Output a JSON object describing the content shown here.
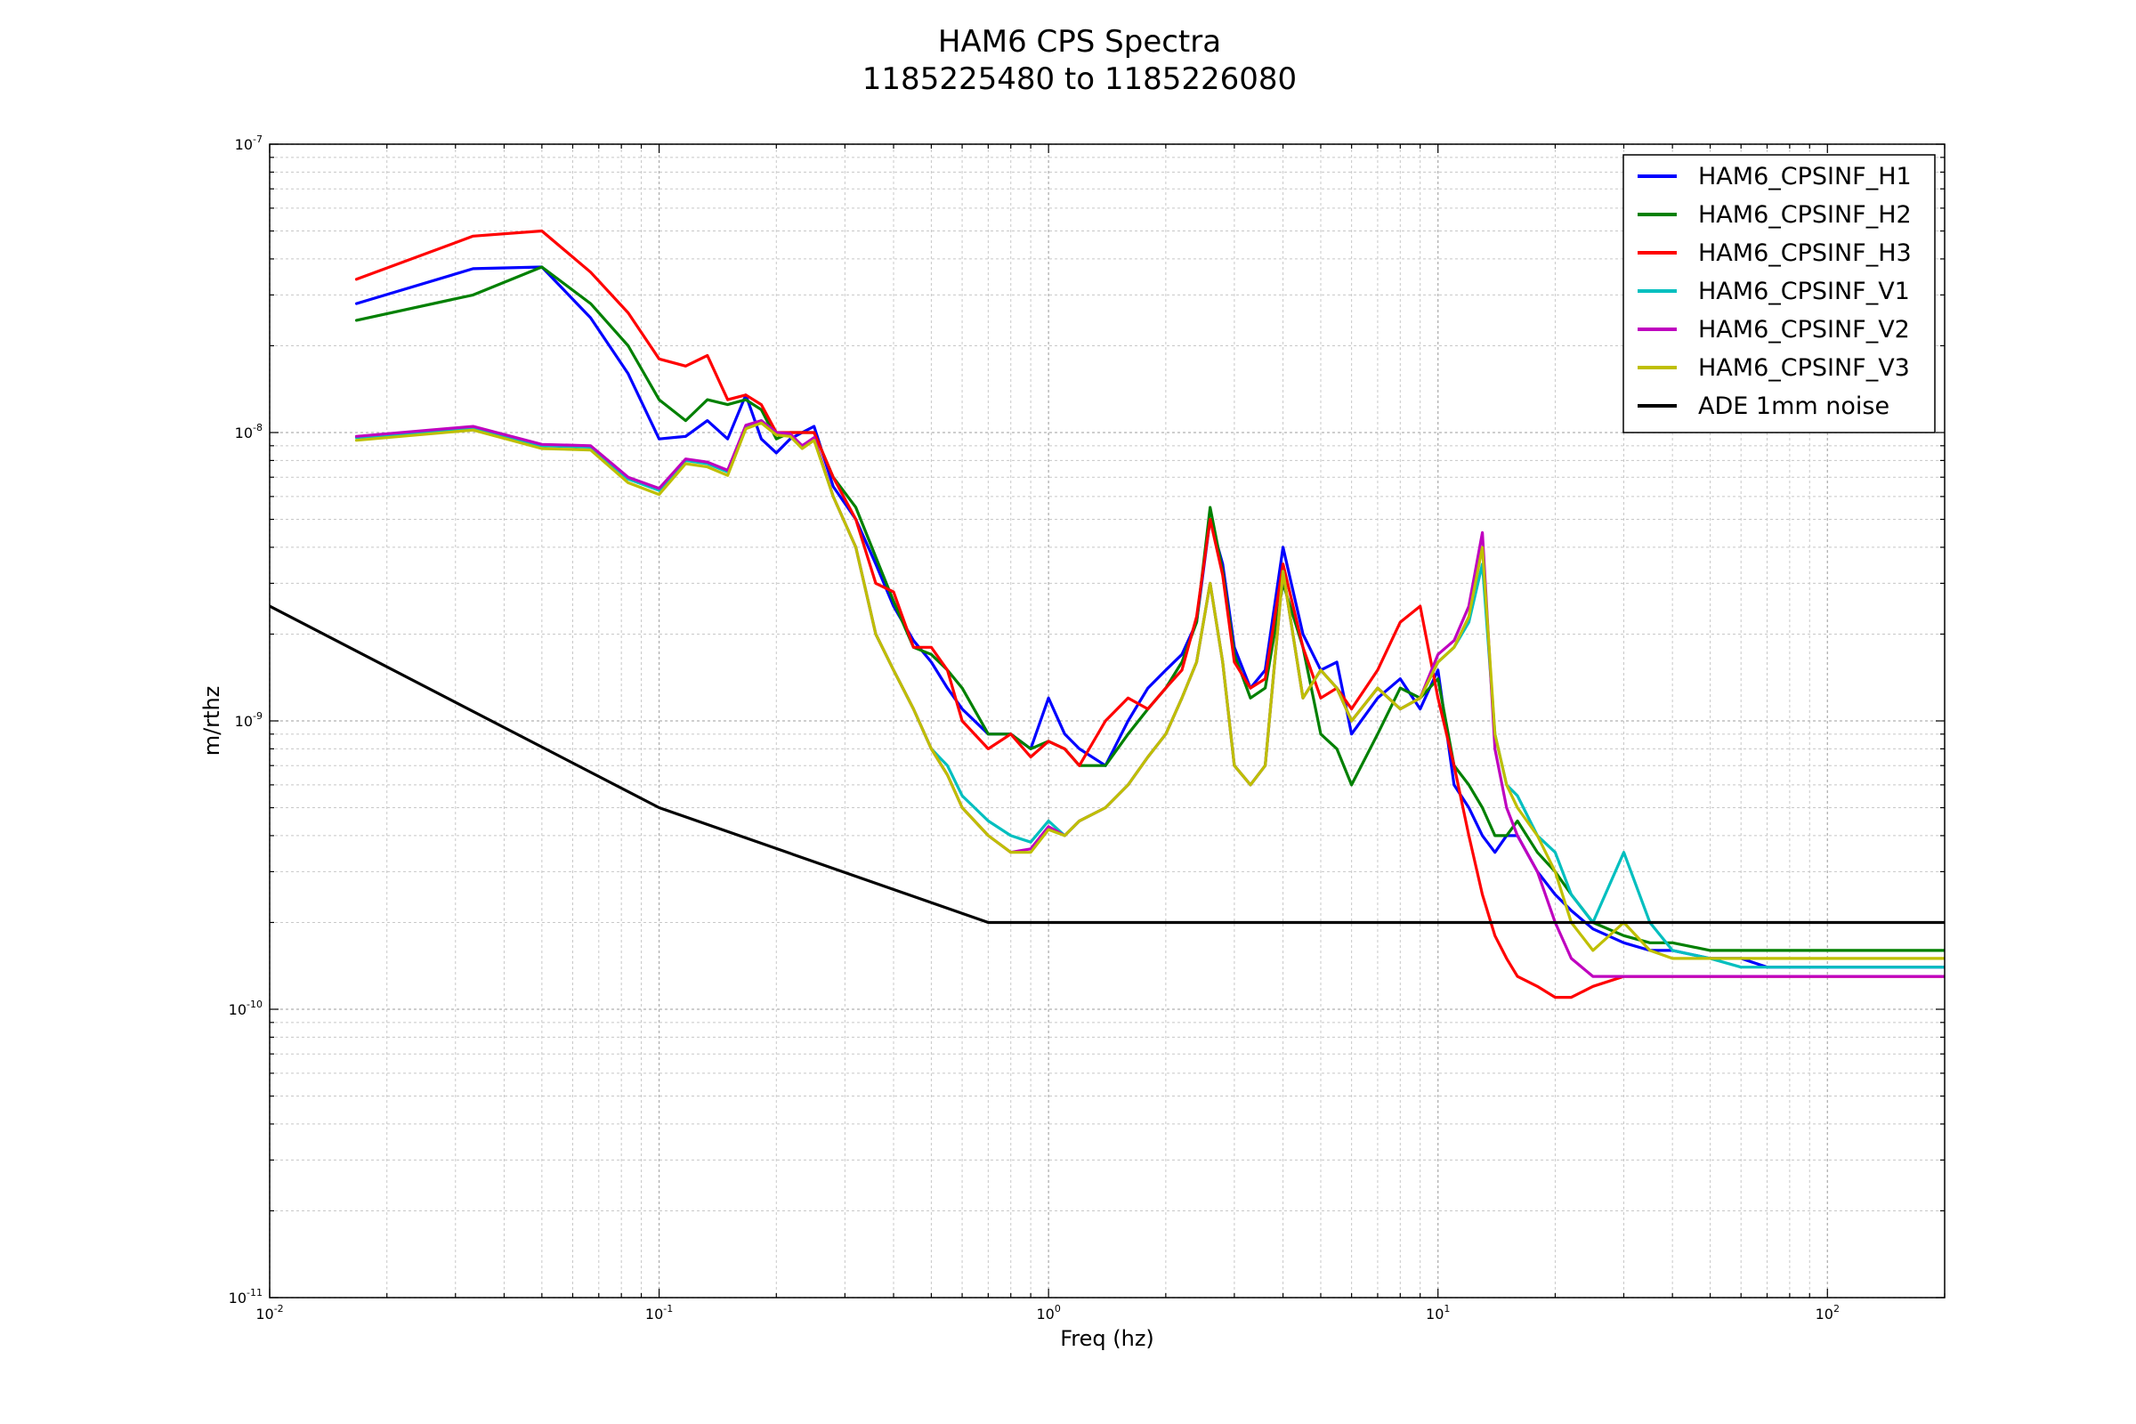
{
  "chart_data": {
    "type": "line",
    "title": "HAM6 CPS Spectra",
    "subtitle": "1185225480 to 1185226080",
    "xlabel": "Freq (hz)",
    "ylabel": "m/rthz",
    "x_scale": "log",
    "y_scale": "log",
    "xlim": [
      0.01,
      200
    ],
    "ylim": [
      1e-11,
      1e-07
    ],
    "grid": true,
    "legend_position": "top-right",
    "x_ticks": [
      {
        "base": "10",
        "exp": "-2",
        "value": 0.01
      },
      {
        "base": "10",
        "exp": "-1",
        "value": 0.1
      },
      {
        "base": "10",
        "exp": "0",
        "value": 1
      },
      {
        "base": "10",
        "exp": "1",
        "value": 10
      },
      {
        "base": "10",
        "exp": "2",
        "value": 100
      }
    ],
    "y_ticks": [
      {
        "base": "10",
        "exp": "-11",
        "value": 1e-11
      },
      {
        "base": "10",
        "exp": "-10",
        "value": 1e-10
      },
      {
        "base": "10",
        "exp": "-9",
        "value": 1e-09
      },
      {
        "base": "10",
        "exp": "-8",
        "value": 1e-08
      },
      {
        "base": "10",
        "exp": "-7",
        "value": 1e-07
      }
    ],
    "series": [
      {
        "name": "HAM6_CPSINF_H1",
        "color": "#0000ff",
        "x": [
          0.0167,
          0.0333,
          0.05,
          0.0667,
          0.0833,
          0.1,
          0.117,
          0.133,
          0.15,
          0.167,
          0.183,
          0.2,
          0.217,
          0.233,
          0.25,
          0.28,
          0.32,
          0.36,
          0.4,
          0.45,
          0.5,
          0.55,
          0.6,
          0.7,
          0.8,
          0.9,
          1.0,
          1.1,
          1.2,
          1.4,
          1.6,
          1.8,
          2.0,
          2.2,
          2.4,
          2.6,
          2.8,
          3.0,
          3.3,
          3.6,
          4.0,
          4.5,
          5.0,
          5.5,
          6.0,
          7.0,
          8.0,
          9.0,
          10.0,
          11.0,
          12.0,
          13.0,
          14.0,
          15.0,
          16.0,
          18.0,
          20.0,
          22.0,
          25.0,
          30.0,
          35.0,
          40.0,
          50.0,
          60.0,
          70.0,
          80.0,
          100.0,
          120.0,
          150.0,
          200.0
        ],
        "y": [
          2.8e-08,
          3.7e-08,
          3.75e-08,
          2.5e-08,
          1.6e-08,
          9.5e-09,
          9.7e-09,
          1.1e-08,
          9.5e-09,
          1.35e-08,
          9.5e-09,
          8.5e-09,
          9.5e-09,
          1e-08,
          1.05e-08,
          6.5e-09,
          5e-09,
          3.5e-09,
          2.5e-09,
          1.9e-09,
          1.6e-09,
          1.3e-09,
          1.1e-09,
          9e-10,
          9e-10,
          8e-10,
          1.2e-09,
          9e-10,
          8e-10,
          7e-10,
          1e-09,
          1.3e-09,
          1.5e-09,
          1.7e-09,
          2.2e-09,
          5e-09,
          3.5e-09,
          1.8e-09,
          1.3e-09,
          1.5e-09,
          4e-09,
          2e-09,
          1.5e-09,
          1.6e-09,
          9e-10,
          1.2e-09,
          1.4e-09,
          1.1e-09,
          1.5e-09,
          6e-10,
          5e-10,
          4e-10,
          3.5e-10,
          4e-10,
          4e-10,
          3e-10,
          2.5e-10,
          2.2e-10,
          1.9e-10,
          1.7e-10,
          1.6e-10,
          1.6e-10,
          1.5e-10,
          1.5e-10,
          1.4e-10,
          1.4e-10,
          1.4e-10,
          1.4e-10,
          1.4e-10,
          1.4e-10
        ]
      },
      {
        "name": "HAM6_CPSINF_H2",
        "color": "#008000",
        "x": [
          0.0167,
          0.0333,
          0.05,
          0.0667,
          0.0833,
          0.1,
          0.117,
          0.133,
          0.15,
          0.167,
          0.183,
          0.2,
          0.217,
          0.233,
          0.25,
          0.28,
          0.32,
          0.36,
          0.4,
          0.45,
          0.5,
          0.55,
          0.6,
          0.7,
          0.8,
          0.9,
          1.0,
          1.1,
          1.2,
          1.4,
          1.6,
          1.8,
          2.0,
          2.2,
          2.4,
          2.6,
          2.8,
          3.0,
          3.3,
          3.6,
          4.0,
          4.5,
          5.0,
          5.5,
          6.0,
          7.0,
          8.0,
          9.0,
          10.0,
          11.0,
          12.0,
          13.0,
          14.0,
          15.0,
          16.0,
          18.0,
          20.0,
          22.0,
          25.0,
          30.0,
          35.0,
          40.0,
          50.0,
          60.0,
          70.0,
          80.0,
          100.0,
          120.0,
          150.0,
          200.0
        ],
        "y": [
          2.45e-08,
          3e-08,
          3.75e-08,
          2.8e-08,
          2e-08,
          1.3e-08,
          1.1e-08,
          1.3e-08,
          1.25e-08,
          1.3e-08,
          1.2e-08,
          9.5e-09,
          1e-08,
          1e-08,
          1e-08,
          7e-09,
          5.5e-09,
          3.7e-09,
          2.6e-09,
          1.8e-09,
          1.7e-09,
          1.5e-09,
          1.3e-09,
          9e-10,
          9e-10,
          8e-10,
          8.5e-10,
          8e-10,
          7e-10,
          7e-10,
          9e-10,
          1.1e-09,
          1.3e-09,
          1.6e-09,
          2.2e-09,
          5.5e-09,
          3.3e-09,
          1.7e-09,
          1.2e-09,
          1.3e-09,
          3e-09,
          1.8e-09,
          9e-10,
          8e-10,
          6e-10,
          9e-10,
          1.3e-09,
          1.2e-09,
          1.4e-09,
          7e-10,
          6e-10,
          5e-10,
          4e-10,
          4e-10,
          4.5e-10,
          3.5e-10,
          3e-10,
          2.5e-10,
          2e-10,
          1.8e-10,
          1.7e-10,
          1.7e-10,
          1.6e-10,
          1.6e-10,
          1.6e-10,
          1.6e-10,
          1.6e-10,
          1.6e-10,
          1.6e-10,
          1.6e-10
        ]
      },
      {
        "name": "HAM6_CPSINF_H3",
        "color": "#ff0000",
        "x": [
          0.0167,
          0.0333,
          0.05,
          0.0667,
          0.0833,
          0.1,
          0.117,
          0.133,
          0.15,
          0.167,
          0.183,
          0.2,
          0.217,
          0.233,
          0.25,
          0.28,
          0.32,
          0.36,
          0.4,
          0.45,
          0.5,
          0.55,
          0.6,
          0.7,
          0.8,
          0.9,
          1.0,
          1.1,
          1.2,
          1.4,
          1.6,
          1.8,
          2.0,
          2.2,
          2.4,
          2.6,
          2.8,
          3.0,
          3.3,
          3.6,
          4.0,
          4.5,
          5.0,
          5.5,
          6.0,
          7.0,
          8.0,
          9.0,
          10.0,
          11.0,
          12.0,
          13.0,
          14.0,
          15.0,
          16.0,
          18.0,
          20.0,
          22.0,
          25.0,
          30.0,
          35.0,
          40.0,
          50.0,
          60.0,
          70.0,
          80.0,
          100.0,
          120.0,
          150.0,
          200.0
        ],
        "y": [
          3.4e-08,
          4.8e-08,
          5e-08,
          3.6e-08,
          2.6e-08,
          1.8e-08,
          1.7e-08,
          1.85e-08,
          1.3e-08,
          1.35e-08,
          1.25e-08,
          1e-08,
          1e-08,
          1e-08,
          1e-08,
          7e-09,
          5e-09,
          3e-09,
          2.8e-09,
          1.8e-09,
          1.8e-09,
          1.5e-09,
          1e-09,
          8e-10,
          9e-10,
          7.5e-10,
          8.5e-10,
          8e-10,
          7e-10,
          1e-09,
          1.2e-09,
          1.1e-09,
          1.3e-09,
          1.5e-09,
          2.3e-09,
          5e-09,
          3.2e-09,
          1.6e-09,
          1.3e-09,
          1.4e-09,
          3.5e-09,
          1.8e-09,
          1.2e-09,
          1.3e-09,
          1.1e-09,
          1.5e-09,
          2.2e-09,
          2.5e-09,
          1.2e-09,
          7e-10,
          4e-10,
          2.5e-10,
          1.8e-10,
          1.5e-10,
          1.3e-10,
          1.2e-10,
          1.1e-10,
          1.1e-10,
          1.2e-10,
          1.3e-10,
          1.3e-10,
          1.3e-10,
          1.3e-10,
          1.3e-10,
          1.3e-10,
          1.3e-10,
          1.3e-10,
          1.3e-10,
          1.3e-10,
          1.3e-10
        ]
      },
      {
        "name": "HAM6_CPSINF_V1",
        "color": "#00bfbf",
        "x": [
          0.0167,
          0.0333,
          0.05,
          0.0667,
          0.0833,
          0.1,
          0.117,
          0.133,
          0.15,
          0.167,
          0.183,
          0.2,
          0.217,
          0.233,
          0.25,
          0.28,
          0.32,
          0.36,
          0.4,
          0.45,
          0.5,
          0.55,
          0.6,
          0.7,
          0.8,
          0.9,
          1.0,
          1.1,
          1.2,
          1.4,
          1.6,
          1.8,
          2.0,
          2.2,
          2.4,
          2.6,
          2.8,
          3.0,
          3.3,
          3.6,
          4.0,
          4.5,
          5.0,
          5.5,
          6.0,
          7.0,
          8.0,
          9.0,
          10.0,
          11.0,
          12.0,
          13.0,
          14.0,
          15.0,
          16.0,
          18.0,
          20.0,
          22.0,
          25.0,
          30.0,
          35.0,
          40.0,
          50.0,
          60.0,
          70.0,
          80.0,
          100.0,
          120.0,
          150.0,
          200.0
        ],
        "y": [
          9.6e-09,
          1.03e-08,
          9e-09,
          8.9e-09,
          6.9e-09,
          6.3e-09,
          8e-09,
          7.8e-09,
          7.3e-09,
          1.05e-08,
          1.1e-08,
          1e-08,
          9.8e-09,
          9e-09,
          9.5e-09,
          6e-09,
          4e-09,
          2e-09,
          1.5e-09,
          1.1e-09,
          8e-10,
          7e-10,
          5.5e-10,
          4.5e-10,
          4e-10,
          3.8e-10,
          4.5e-10,
          4e-10,
          4.5e-10,
          5e-10,
          6e-10,
          7.5e-10,
          9e-10,
          1.2e-09,
          1.6e-09,
          3e-09,
          1.6e-09,
          7e-10,
          6e-10,
          7e-10,
          3.3e-09,
          1.2e-09,
          1.5e-09,
          1.3e-09,
          1e-09,
          1.3e-09,
          1.1e-09,
          1.2e-09,
          1.6e-09,
          1.8e-09,
          2.2e-09,
          3.5e-09,
          9e-10,
          6e-10,
          5.5e-10,
          4e-10,
          3.5e-10,
          2.5e-10,
          2e-10,
          3.5e-10,
          2e-10,
          1.6e-10,
          1.5e-10,
          1.4e-10,
          1.4e-10,
          1.4e-10,
          1.4e-10,
          1.4e-10,
          1.4e-10,
          1.4e-10
        ]
      },
      {
        "name": "HAM6_CPSINF_V2",
        "color": "#bf00bf",
        "x": [
          0.0167,
          0.0333,
          0.05,
          0.0667,
          0.0833,
          0.1,
          0.117,
          0.133,
          0.15,
          0.167,
          0.183,
          0.2,
          0.217,
          0.233,
          0.25,
          0.28,
          0.32,
          0.36,
          0.4,
          0.45,
          0.5,
          0.55,
          0.6,
          0.7,
          0.8,
          0.9,
          1.0,
          1.1,
          1.2,
          1.4,
          1.6,
          1.8,
          2.0,
          2.2,
          2.4,
          2.6,
          2.8,
          3.0,
          3.3,
          3.6,
          4.0,
          4.5,
          5.0,
          5.5,
          6.0,
          7.0,
          8.0,
          9.0,
          10.0,
          11.0,
          12.0,
          13.0,
          14.0,
          15.0,
          16.0,
          18.0,
          20.0,
          22.0,
          25.0,
          30.0,
          35.0,
          40.0,
          50.0,
          60.0,
          70.0,
          80.0,
          100.0,
          120.0,
          150.0,
          200.0
        ],
        "y": [
          9.7e-09,
          1.05e-08,
          9.1e-09,
          9e-09,
          7e-09,
          6.4e-09,
          8.1e-09,
          7.9e-09,
          7.4e-09,
          1.06e-08,
          1.1e-08,
          1e-08,
          9.9e-09,
          9e-09,
          9.6e-09,
          6e-09,
          4e-09,
          2e-09,
          1.5e-09,
          1.1e-09,
          8e-10,
          6.5e-10,
          5e-10,
          4e-10,
          3.5e-10,
          3.6e-10,
          4.3e-10,
          4e-10,
          4.5e-10,
          5e-10,
          6e-10,
          7.5e-10,
          9e-10,
          1.2e-09,
          1.6e-09,
          3e-09,
          1.6e-09,
          7e-10,
          6e-10,
          7e-10,
          3.3e-09,
          1.2e-09,
          1.5e-09,
          1.3e-09,
          1e-09,
          1.3e-09,
          1.1e-09,
          1.2e-09,
          1.7e-09,
          1.9e-09,
          2.5e-09,
          4.5e-09,
          8e-10,
          5e-10,
          4e-10,
          3e-10,
          2e-10,
          1.5e-10,
          1.3e-10,
          1.3e-10,
          1.3e-10,
          1.3e-10,
          1.3e-10,
          1.3e-10,
          1.3e-10,
          1.3e-10,
          1.3e-10,
          1.3e-10,
          1.3e-10,
          1.3e-10
        ]
      },
      {
        "name": "HAM6_CPSINF_V3",
        "color": "#bfbf00",
        "x": [
          0.0167,
          0.0333,
          0.05,
          0.0667,
          0.0833,
          0.1,
          0.117,
          0.133,
          0.15,
          0.167,
          0.183,
          0.2,
          0.217,
          0.233,
          0.25,
          0.28,
          0.32,
          0.36,
          0.4,
          0.45,
          0.5,
          0.55,
          0.6,
          0.7,
          0.8,
          0.9,
          1.0,
          1.1,
          1.2,
          1.4,
          1.6,
          1.8,
          2.0,
          2.2,
          2.4,
          2.6,
          2.8,
          3.0,
          3.3,
          3.6,
          4.0,
          4.5,
          5.0,
          5.5,
          6.0,
          7.0,
          8.0,
          9.0,
          10.0,
          11.0,
          12.0,
          13.0,
          14.0,
          15.0,
          16.0,
          18.0,
          20.0,
          22.0,
          25.0,
          30.0,
          35.0,
          40.0,
          50.0,
          60.0,
          70.0,
          80.0,
          100.0,
          120.0,
          150.0,
          200.0
        ],
        "y": [
          9.4e-09,
          1.02e-08,
          8.8e-09,
          8.7e-09,
          6.7e-09,
          6.1e-09,
          7.8e-09,
          7.6e-09,
          7.1e-09,
          1.03e-08,
          1.08e-08,
          9.8e-09,
          9.7e-09,
          8.8e-09,
          9.4e-09,
          6e-09,
          4e-09,
          2e-09,
          1.5e-09,
          1.1e-09,
          8e-10,
          6.5e-10,
          5e-10,
          4e-10,
          3.5e-10,
          3.5e-10,
          4.2e-10,
          4e-10,
          4.5e-10,
          5e-10,
          6e-10,
          7.5e-10,
          9e-10,
          1.2e-09,
          1.6e-09,
          3e-09,
          1.6e-09,
          7e-10,
          6e-10,
          7e-10,
          3.3e-09,
          1.2e-09,
          1.5e-09,
          1.3e-09,
          1e-09,
          1.3e-09,
          1.1e-09,
          1.2e-09,
          1.6e-09,
          1.8e-09,
          2.3e-09,
          4e-09,
          9e-10,
          6e-10,
          5e-10,
          4e-10,
          3e-10,
          2e-10,
          1.6e-10,
          2e-10,
          1.6e-10,
          1.5e-10,
          1.5e-10,
          1.5e-10,
          1.5e-10,
          1.5e-10,
          1.5e-10,
          1.5e-10,
          1.5e-10,
          1.5e-10
        ]
      },
      {
        "name": "ADE 1mm noise",
        "color": "#000000",
        "x": [
          0.01,
          0.1,
          0.7,
          200.0
        ],
        "y": [
          2.5e-09,
          5e-10,
          2e-10,
          2e-10
        ]
      }
    ]
  }
}
